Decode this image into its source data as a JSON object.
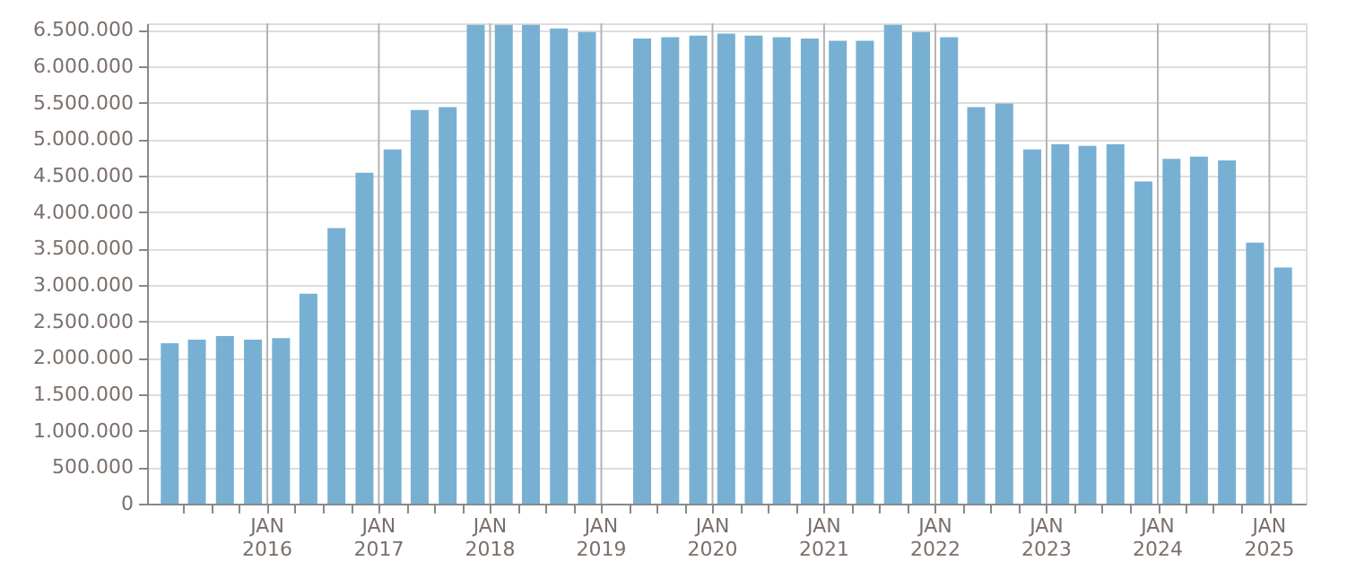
{
  "chart_data": {
    "type": "bar",
    "x": [
      "2015-02-15",
      "2015-05-15",
      "2015-08-15",
      "2015-11-15",
      "2016-02-15",
      "2016-05-15",
      "2016-08-15",
      "2016-11-15",
      "2017-02-15",
      "2017-05-15",
      "2017-08-15",
      "2017-11-15",
      "2018-02-15",
      "2018-05-15",
      "2018-08-15",
      "2018-11-15",
      "2019-02-15",
      "2019-05-15",
      "2019-08-15",
      "2019-11-15",
      "2020-02-15",
      "2020-05-15",
      "2020-08-15",
      "2020-11-15",
      "2021-02-15",
      "2021-05-15",
      "2021-08-15",
      "2021-11-15",
      "2022-02-15",
      "2022-05-15",
      "2022-08-15",
      "2022-11-15",
      "2023-02-15",
      "2023-05-15",
      "2023-08-15",
      "2023-11-15",
      "2024-02-15",
      "2024-05-15",
      "2024-08-15",
      "2024-11-15",
      "2025-02-15"
    ],
    "values": [
      2200000,
      2250000,
      2300000,
      2250000,
      2270000,
      2880000,
      3780000,
      4540000,
      4860000,
      5400000,
      5440000,
      6570000,
      6570000,
      6570000,
      6520000,
      6470000,
      null,
      6380000,
      6400000,
      6420000,
      6450000,
      6420000,
      6400000,
      6380000,
      6350000,
      6350000,
      6570000,
      6470000,
      6400000,
      5440000,
      5490000,
      4860000,
      4930000,
      4910000,
      4930000,
      4420000,
      4730000,
      4760000,
      4710000,
      3580000,
      3240000
    ],
    "color": "#78b0d3",
    "xlim": [
      "2015-01-01",
      "2025-04-01"
    ],
    "xticks": [
      {
        "value": "2015-04-01",
        "label": null
      },
      {
        "value": "2015-07-01",
        "label": null
      },
      {
        "value": "2015-10-01",
        "label": null
      },
      {
        "value": "2016-01-01",
        "label": "JAN 2016"
      },
      {
        "value": "2016-04-01",
        "label": null
      },
      {
        "value": "2016-07-01",
        "label": null
      },
      {
        "value": "2016-10-01",
        "label": null
      },
      {
        "value": "2017-01-01",
        "label": "JAN 2017"
      },
      {
        "value": "2017-04-01",
        "label": null
      },
      {
        "value": "2017-07-01",
        "label": null
      },
      {
        "value": "2017-10-01",
        "label": null
      },
      {
        "value": "2018-01-01",
        "label": "JAN 2018"
      },
      {
        "value": "2018-04-01",
        "label": null
      },
      {
        "value": "2018-07-01",
        "label": null
      },
      {
        "value": "2018-10-01",
        "label": null
      },
      {
        "value": "2019-01-01",
        "label": "JAN 2019"
      },
      {
        "value": "2019-04-01",
        "label": null
      },
      {
        "value": "2019-07-01",
        "label": null
      },
      {
        "value": "2019-10-01",
        "label": null
      },
      {
        "value": "2020-01-01",
        "label": "JAN 2020"
      },
      {
        "value": "2020-04-01",
        "label": null
      },
      {
        "value": "2020-07-01",
        "label": null
      },
      {
        "value": "2020-10-01",
        "label": null
      },
      {
        "value": "2021-01-01",
        "label": "JAN 2021"
      },
      {
        "value": "2021-04-01",
        "label": null
      },
      {
        "value": "2021-07-01",
        "label": null
      },
      {
        "value": "2021-10-01",
        "label": null
      },
      {
        "value": "2022-01-01",
        "label": "JAN 2022"
      },
      {
        "value": "2022-04-01",
        "label": null
      },
      {
        "value": "2022-07-01",
        "label": null
      },
      {
        "value": "2022-10-01",
        "label": null
      },
      {
        "value": "2023-01-01",
        "label": "JAN 2023"
      },
      {
        "value": "2023-04-01",
        "label": null
      },
      {
        "value": "2023-07-01",
        "label": null
      },
      {
        "value": "2023-10-01",
        "label": null
      },
      {
        "value": "2024-01-01",
        "label": "JAN 2024"
      },
      {
        "value": "2024-04-01",
        "label": null
      },
      {
        "value": "2024-07-01",
        "label": null
      },
      {
        "value": "2024-10-01",
        "label": null
      },
      {
        "value": "2025-01-01",
        "label": "JAN 2025"
      }
    ],
    "ylim": [
      0,
      6590000
    ],
    "yticks": [
      0,
      {
        "value": 500000,
        "label": "500.000"
      },
      {
        "value": 1000000,
        "label": "1.000.000"
      },
      {
        "value": 1500000,
        "label": "1.500.000"
      },
      {
        "value": 2000000,
        "label": "2.000.000"
      },
      {
        "value": 2500000,
        "label": "2.500.000"
      },
      {
        "value": 3000000,
        "label": "3.000.000"
      },
      {
        "value": 3500000,
        "label": "3.500.000"
      },
      {
        "value": 4000000,
        "label": "4.000.000"
      },
      {
        "value": 4500000,
        "label": "4.500.000"
      },
      {
        "value": 5000000,
        "label": "5.000.000"
      },
      {
        "value": 5500000,
        "label": "5.500.000"
      },
      {
        "value": 6000000,
        "label": "6.000.000"
      },
      {
        "value": 6500000,
        "label": "6.500.000"
      }
    ],
    "grid": true
  }
}
